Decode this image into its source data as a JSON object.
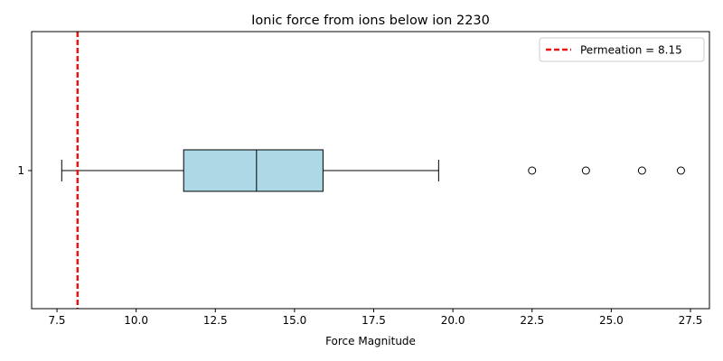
{
  "chart_data": {
    "type": "boxplot",
    "title": "Ionic force from ions below ion 2230",
    "xlabel": "Force Magnitude",
    "ylabel": "",
    "xlim": [
      6.7,
      28.1
    ],
    "xticks": [
      7.5,
      10.0,
      12.5,
      15.0,
      17.5,
      20.0,
      22.5,
      25.0,
      27.5
    ],
    "xtick_labels": [
      "7.5",
      "10.0",
      "12.5",
      "15.0",
      "17.5",
      "20.0",
      "22.5",
      "25.0",
      "27.5"
    ],
    "ytick_labels": [
      "1"
    ],
    "grid": false,
    "legend_position": "top-right",
    "box": {
      "category": "1",
      "whisker_low": 7.65,
      "q1": 11.5,
      "median": 13.8,
      "q3": 15.9,
      "whisker_high": 19.55,
      "outliers": [
        22.5,
        24.2,
        25.97,
        27.2
      ],
      "fill_color": "#add8e6"
    },
    "reference_line": {
      "value": 8.15,
      "label": "Permeation = 8.15",
      "color": "#ee1111",
      "style": "dashed"
    }
  }
}
